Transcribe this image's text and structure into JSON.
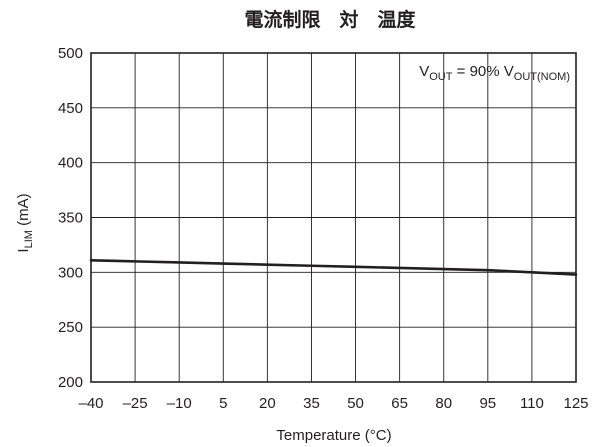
{
  "chart_data": {
    "type": "line",
    "title": "電流制限　対　温度",
    "xlabel": "Temperature (°C)",
    "ylabel": {
      "main": "I",
      "sub": "LIM",
      "rest": " (mA)"
    },
    "xlim": [
      -40,
      125
    ],
    "ylim": [
      200,
      500
    ],
    "xticks": [
      -40,
      -25,
      -10,
      5,
      20,
      35,
      50,
      65,
      80,
      95,
      110,
      125
    ],
    "yticks": [
      200,
      250,
      300,
      350,
      400,
      450,
      500
    ],
    "grid": true,
    "annotation": {
      "v1": "V",
      "s1": "OUT",
      "mid": " = 90% V",
      "s2": "OUT(NOM)",
      "placement": "top-right"
    },
    "series": [
      {
        "x": [
          -40,
          -25,
          -10,
          5,
          20,
          35,
          50,
          65,
          80,
          95,
          110,
          125
        ],
        "y": [
          311,
          310,
          309,
          308,
          307,
          306,
          305,
          304,
          303,
          302,
          300,
          298
        ]
      }
    ]
  }
}
